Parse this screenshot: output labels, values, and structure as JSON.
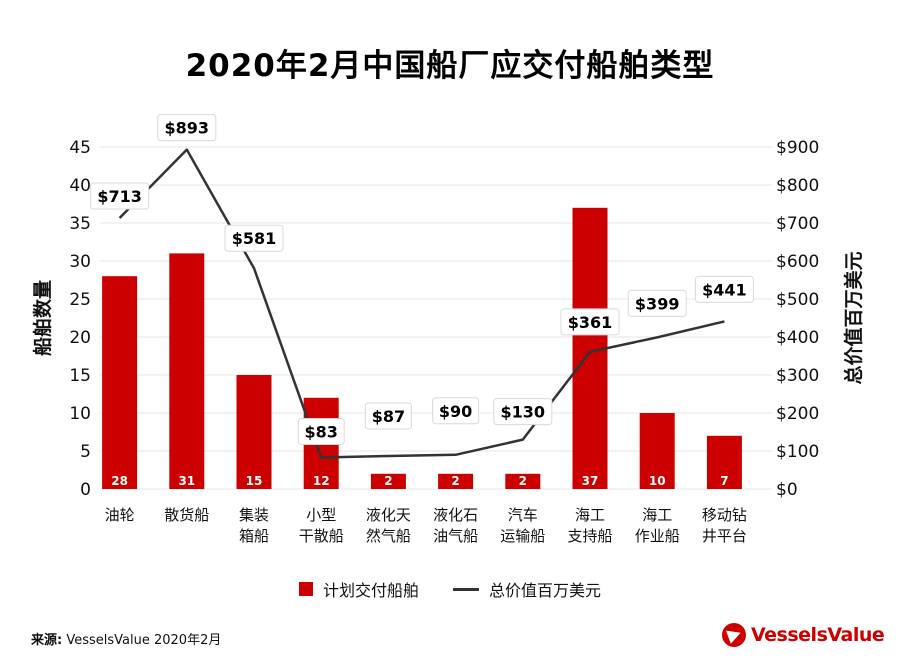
{
  "title": "2020年2月中国船厂应交付船舶类型",
  "chart_data": {
    "type": "bar",
    "title": "2020年2月中国船厂应交付船舶类型",
    "categories": [
      [
        "油轮"
      ],
      [
        "散货船"
      ],
      [
        "集装",
        "箱船"
      ],
      [
        "小型",
        "干散船"
      ],
      [
        "液化天",
        "然气船"
      ],
      [
        "液化石",
        "油气船"
      ],
      [
        "汽车",
        "运输船"
      ],
      [
        "海工",
        "支持船"
      ],
      [
        "海工",
        "作业船"
      ],
      [
        "移动钻",
        "井平台"
      ]
    ],
    "series": [
      {
        "name": "计划交付船舶",
        "type": "bar",
        "axis": "left",
        "color": "#cc0000",
        "values": [
          28,
          31,
          15,
          12,
          2,
          2,
          2,
          37,
          10,
          7
        ],
        "labels": [
          "28",
          "31",
          "15",
          "12",
          "2",
          "2",
          "2",
          "37",
          "10",
          "7"
        ]
      },
      {
        "name": "总价值百万美元",
        "type": "line",
        "axis": "right",
        "color": "#333333",
        "values": [
          713,
          893,
          581,
          83,
          87,
          90,
          130,
          361,
          399,
          441
        ],
        "labels": [
          "$713",
          "$893",
          "$581",
          "$83",
          "$87",
          "$90",
          "$130",
          "$361",
          "$399",
          "$441"
        ]
      }
    ],
    "ylabel": "船舶数量",
    "y2label": "总价值百万美元",
    "xlabel": "",
    "ylim": [
      0,
      45
    ],
    "y2lim": [
      0,
      900
    ],
    "yticks": [
      "0",
      "5",
      "10",
      "15",
      "20",
      "25",
      "30",
      "35",
      "40",
      "45"
    ],
    "y2ticks": [
      "$0",
      "$100",
      "$200",
      "$300",
      "$400",
      "$500",
      "$600",
      "$700",
      "$800",
      "$900"
    ],
    "grid": true,
    "legend": "bottom-center"
  },
  "legend": {
    "bar_label": "计划交付船舶",
    "line_label": "总价值百万美元"
  },
  "footer": {
    "source_label": "来源:",
    "source_text": "VesselsValue 2020年2月",
    "logo_text": "VesselsValue"
  }
}
